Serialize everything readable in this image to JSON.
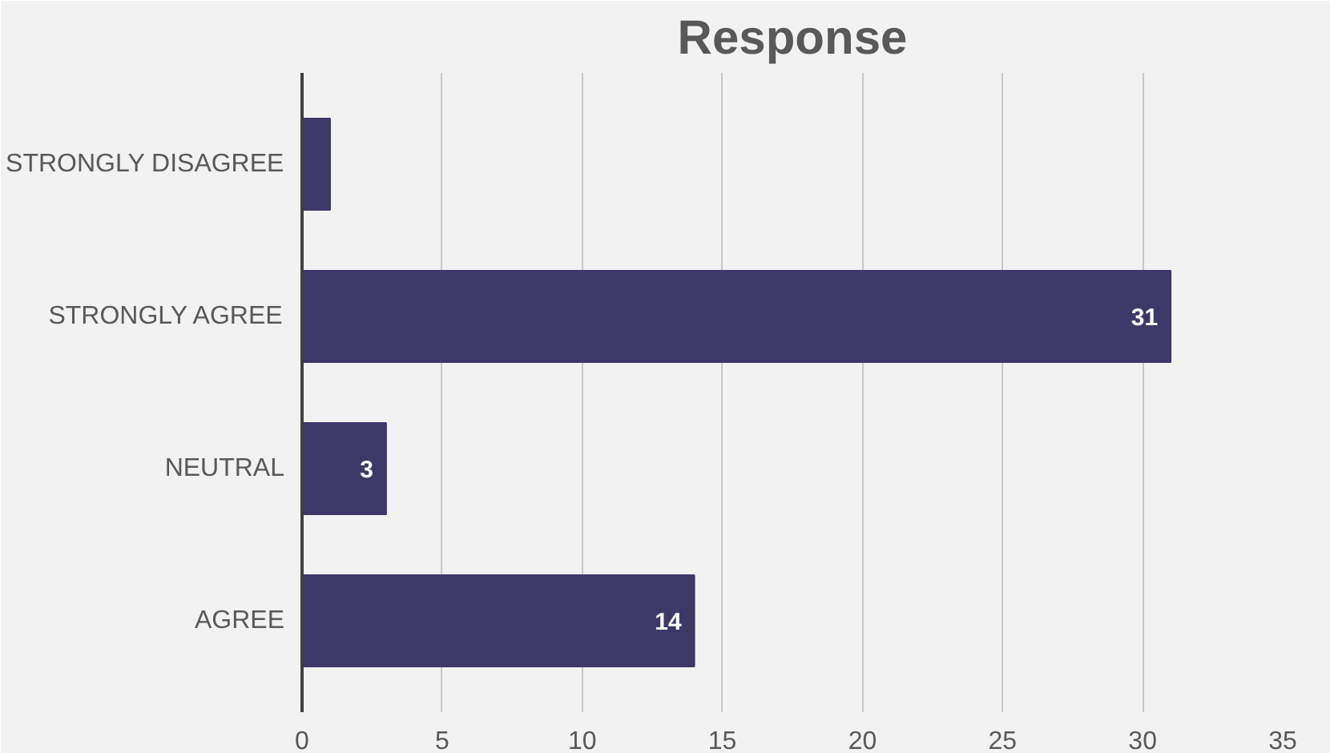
{
  "chart_data": {
    "type": "bar",
    "orientation": "horizontal",
    "title": "Response",
    "categories": [
      "STRONGLY DISAGREE",
      "STRONGLY AGREE",
      "NEUTRAL",
      "AGREE"
    ],
    "values": [
      1,
      31,
      3,
      14
    ],
    "value_labels": [
      null,
      "31",
      "3",
      "14"
    ],
    "color": "#3d3868",
    "xlim": [
      0,
      35
    ],
    "xticks": [
      0,
      5,
      10,
      15,
      20,
      25,
      30,
      35
    ],
    "grid": "x"
  }
}
